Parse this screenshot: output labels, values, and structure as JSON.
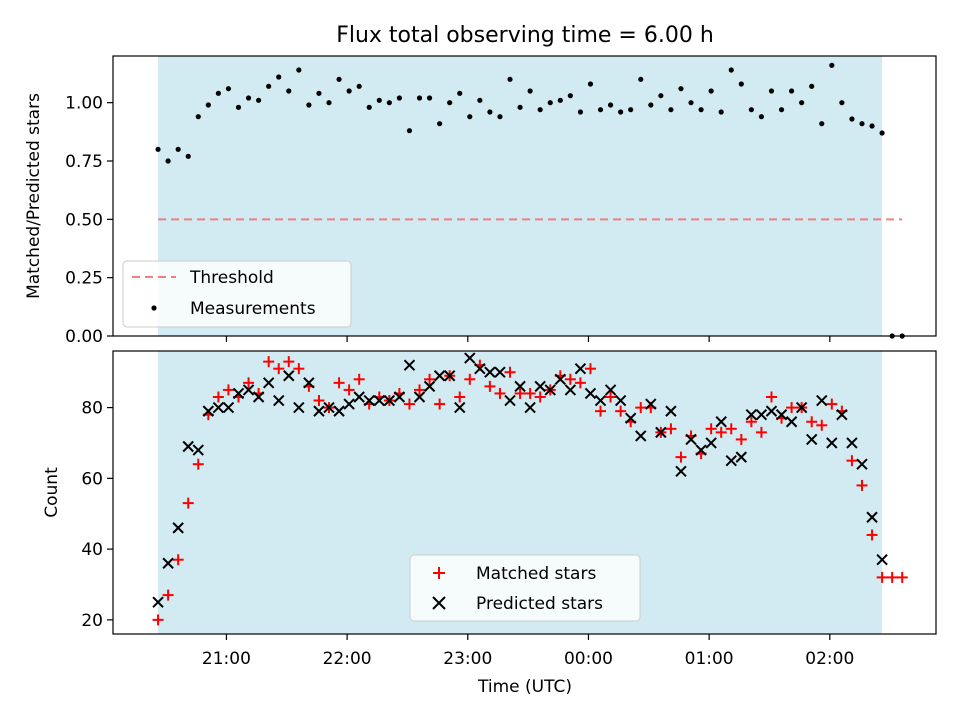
{
  "title": "Flux total observing time = 6.00 h",
  "xlabel": "Time (UTC)",
  "x_ticks": [
    "21:00",
    "22:00",
    "23:00",
    "00:00",
    "01:00",
    "02:00"
  ],
  "colors": {
    "span": "#add8e6",
    "threshold": "#f08080",
    "measurements": "#000000",
    "matched": "#ff0000",
    "predicted": "#000000"
  },
  "chart_data": [
    {
      "type": "scatter",
      "ylabel": "Matched/Predicted stars",
      "y_ticks": [
        "0.00",
        "0.25",
        "0.50",
        "0.75",
        "1.00"
      ],
      "ylim": [
        0,
        1.2
      ],
      "xlim_hours": [
        20.06,
        26.88
      ],
      "observing_span": [
        "20:26",
        "02:26"
      ],
      "threshold": {
        "label": "Threshold",
        "value": 0.5,
        "x_start": "20:26",
        "x_end": "02:36"
      },
      "series": [
        {
          "name": "Measurements",
          "x": [
            "20:26",
            "20:31",
            "20:36",
            "20:41",
            "20:46",
            "20:51",
            "20:56",
            "21:01",
            "21:06",
            "21:11",
            "21:16",
            "21:21",
            "21:26",
            "21:31",
            "21:36",
            "21:41",
            "21:46",
            "21:51",
            "21:56",
            "22:01",
            "22:06",
            "22:11",
            "22:16",
            "22:21",
            "22:26",
            "22:31",
            "22:36",
            "22:41",
            "22:46",
            "22:51",
            "22:56",
            "23:01",
            "23:06",
            "23:11",
            "23:16",
            "23:21",
            "23:26",
            "23:31",
            "23:36",
            "23:41",
            "23:46",
            "23:51",
            "23:56",
            "00:01",
            "00:06",
            "00:11",
            "00:16",
            "00:21",
            "00:26",
            "00:31",
            "00:36",
            "00:41",
            "00:46",
            "00:51",
            "00:56",
            "01:01",
            "01:06",
            "01:11",
            "01:16",
            "01:21",
            "01:26",
            "01:31",
            "01:36",
            "01:41",
            "01:46",
            "01:51",
            "01:56",
            "02:01",
            "02:06",
            "02:11",
            "02:16",
            "02:21",
            "02:26",
            "02:31",
            "02:36"
          ],
          "values": [
            0.8,
            0.75,
            0.8,
            0.77,
            0.94,
            0.99,
            1.04,
            1.06,
            0.98,
            1.02,
            1.01,
            1.07,
            1.11,
            1.05,
            1.14,
            0.99,
            1.04,
            1.0,
            1.1,
            1.05,
            1.07,
            0.98,
            1.01,
            1.0,
            1.02,
            0.88,
            1.02,
            1.02,
            0.91,
            1.0,
            1.04,
            0.94,
            1.01,
            0.96,
            0.94,
            1.1,
            0.98,
            1.05,
            0.97,
            1.0,
            1.01,
            1.03,
            0.96,
            1.08,
            0.97,
            0.99,
            0.96,
            0.97,
            1.1,
            0.99,
            1.03,
            0.97,
            1.06,
            1.0,
            0.97,
            1.05,
            0.96,
            1.14,
            1.08,
            0.97,
            0.94,
            1.05,
            0.97,
            1.05,
            1.0,
            1.07,
            0.91,
            1.16,
            1.0,
            0.93,
            0.91,
            0.9,
            0.87,
            0.0,
            0.0
          ]
        }
      ],
      "legend": [
        "Threshold",
        "Measurements"
      ]
    },
    {
      "type": "scatter",
      "ylabel": "Count",
      "y_ticks": [
        "20",
        "40",
        "60",
        "80"
      ],
      "ylim": [
        16,
        96
      ],
      "xlim_hours": [
        20.06,
        26.88
      ],
      "observing_span": [
        "20:26",
        "02:26"
      ],
      "series": [
        {
          "name": "Matched stars",
          "marker": "+",
          "x": [
            "20:26",
            "20:31",
            "20:36",
            "20:41",
            "20:46",
            "20:51",
            "20:56",
            "21:01",
            "21:06",
            "21:11",
            "21:16",
            "21:21",
            "21:26",
            "21:31",
            "21:36",
            "21:41",
            "21:46",
            "21:51",
            "21:56",
            "22:01",
            "22:06",
            "22:11",
            "22:16",
            "22:21",
            "22:26",
            "22:31",
            "22:36",
            "22:41",
            "22:46",
            "22:51",
            "22:56",
            "23:01",
            "23:06",
            "23:11",
            "23:16",
            "23:21",
            "23:26",
            "23:31",
            "23:36",
            "23:41",
            "23:46",
            "23:51",
            "23:56",
            "00:01",
            "00:06",
            "00:11",
            "00:16",
            "00:21",
            "00:26",
            "00:31",
            "00:36",
            "00:41",
            "00:46",
            "00:51",
            "00:56",
            "01:01",
            "01:06",
            "01:11",
            "01:16",
            "01:21",
            "01:26",
            "01:31",
            "01:36",
            "01:41",
            "01:46",
            "01:51",
            "01:56",
            "02:01",
            "02:06",
            "02:11",
            "02:16",
            "02:21",
            "02:26",
            "02:31",
            "02:36"
          ],
          "values": [
            20,
            27,
            37,
            53,
            64,
            78,
            83,
            85,
            83,
            87,
            84,
            93,
            91,
            93,
            91,
            86,
            82,
            80,
            87,
            85,
            88,
            81,
            83,
            82,
            84,
            81,
            85,
            88,
            81,
            89,
            83,
            88,
            92,
            86,
            84,
            90,
            84,
            84,
            83,
            85,
            89,
            88,
            87,
            91,
            79,
            83,
            79,
            76,
            80,
            80,
            73,
            74,
            66,
            72,
            67,
            74,
            73,
            74,
            71,
            76,
            73,
            83,
            77,
            80,
            80,
            76,
            75,
            81,
            79,
            65,
            58,
            44,
            32,
            32,
            32
          ]
        },
        {
          "name": "Predicted stars",
          "marker": "x",
          "x": [
            "20:26",
            "20:31",
            "20:36",
            "20:41",
            "20:46",
            "20:51",
            "20:56",
            "21:01",
            "21:06",
            "21:11",
            "21:16",
            "21:21",
            "21:26",
            "21:31",
            "21:36",
            "21:41",
            "21:46",
            "21:51",
            "21:56",
            "22:01",
            "22:06",
            "22:11",
            "22:16",
            "22:21",
            "22:26",
            "22:31",
            "22:36",
            "22:41",
            "22:46",
            "22:51",
            "22:56",
            "23:01",
            "23:06",
            "23:11",
            "23:16",
            "23:21",
            "23:26",
            "23:31",
            "23:36",
            "23:41",
            "23:46",
            "23:51",
            "23:56",
            "00:01",
            "00:06",
            "00:11",
            "00:16",
            "00:21",
            "00:26",
            "00:31",
            "00:36",
            "00:41",
            "00:46",
            "00:51",
            "00:56",
            "01:01",
            "01:06",
            "01:11",
            "01:16",
            "01:21",
            "01:26",
            "01:31",
            "01:36",
            "01:41",
            "01:46",
            "01:51",
            "01:56",
            "02:01",
            "02:06",
            "02:11",
            "02:16",
            "02:21",
            "02:26"
          ],
          "values": [
            25,
            36,
            46,
            69,
            68,
            79,
            80,
            80,
            84,
            85,
            83,
            87,
            82,
            89,
            80,
            87,
            79,
            80,
            79,
            81,
            83,
            82,
            82,
            82,
            83,
            92,
            83,
            86,
            89,
            89,
            80,
            94,
            91,
            90,
            90,
            82,
            86,
            80,
            86,
            85,
            88,
            85,
            91,
            84,
            82,
            85,
            82,
            77,
            72,
            81,
            73,
            79,
            62,
            71,
            68,
            70,
            76,
            65,
            66,
            78,
            78,
            79,
            78,
            76,
            80,
            71,
            82,
            70,
            78,
            70,
            64,
            49,
            37
          ]
        }
      ],
      "legend": [
        "Matched stars",
        "Predicted stars"
      ]
    }
  ]
}
